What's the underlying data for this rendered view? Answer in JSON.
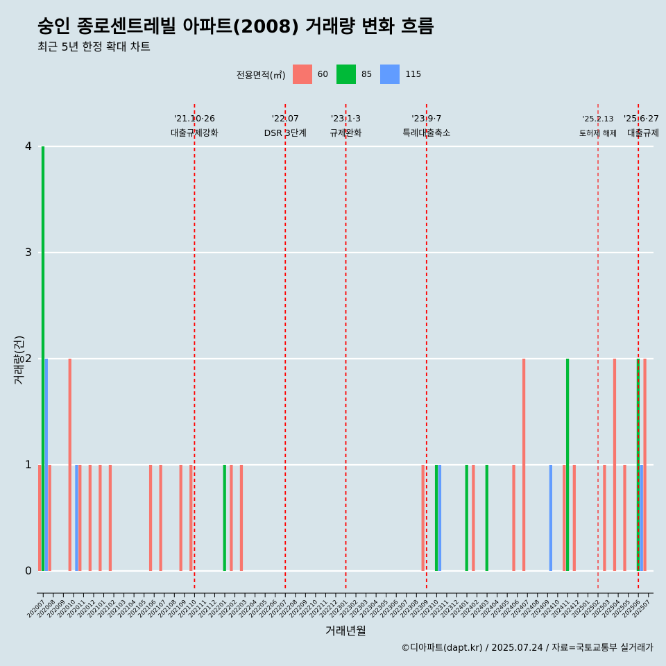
{
  "header": {
    "title": "숭인 종로센트레빌 아파트(2008) 거래량 변화 흐름",
    "subtitle": "최근 5년 한정 확대 차트"
  },
  "legend": {
    "title": "전용면적(㎡)",
    "items": [
      {
        "label": "60",
        "color": "#f8766d"
      },
      {
        "label": "85",
        "color": "#00ba38"
      },
      {
        "label": "115",
        "color": "#619cff"
      }
    ]
  },
  "footer": "©디아파트(dapt.kr) / 2025.07.24 / 자료=국토교통부 실거래가",
  "chart_data": {
    "type": "bar",
    "xlabel": "거래년월",
    "ylabel": "거래량(건)",
    "ylim": [
      0,
      4
    ],
    "yticks": [
      0,
      1,
      2,
      3,
      4
    ],
    "grid": true,
    "legend_position": "top",
    "categories": [
      "202007",
      "202008",
      "202009",
      "202010",
      "202011",
      "202012",
      "202101",
      "202102",
      "202103",
      "202104",
      "202105",
      "202106",
      "202107",
      "202108",
      "202109",
      "202110",
      "202111",
      "202112",
      "202201",
      "202202",
      "202203",
      "202204",
      "202205",
      "202206",
      "202207",
      "202208",
      "202209",
      "202210",
      "202211",
      "202212",
      "202301",
      "202302",
      "202303",
      "202304",
      "202305",
      "202306",
      "202307",
      "202308",
      "202309",
      "202310",
      "202311",
      "202312",
      "202401",
      "202402",
      "202403",
      "202404",
      "202405",
      "202406",
      "202407",
      "202408",
      "202409",
      "202410",
      "202411",
      "202412",
      "202501",
      "202502",
      "202503",
      "202504",
      "202505",
      "202506",
      "202507"
    ],
    "series": [
      {
        "name": "60",
        "color": "#f8766d",
        "values": [
          1,
          1,
          0,
          2,
          1,
          1,
          1,
          1,
          0,
          0,
          0,
          1,
          1,
          0,
          1,
          1,
          0,
          0,
          0,
          1,
          1,
          0,
          0,
          0,
          0,
          0,
          0,
          0,
          0,
          0,
          0,
          0,
          0,
          0,
          0,
          0,
          0,
          0,
          1,
          0,
          0,
          0,
          0,
          1,
          0,
          0,
          0,
          1,
          2,
          0,
          0,
          0,
          1,
          1,
          0,
          0,
          1,
          2,
          1,
          0,
          2
        ]
      },
      {
        "name": "85",
        "color": "#00ba38",
        "values": [
          4,
          0,
          0,
          0,
          0,
          0,
          0,
          0,
          0,
          0,
          0,
          0,
          0,
          0,
          0,
          0,
          0,
          0,
          1,
          0,
          0,
          0,
          0,
          0,
          0,
          0,
          0,
          0,
          0,
          0,
          0,
          0,
          0,
          0,
          0,
          0,
          0,
          0,
          0,
          1,
          0,
          0,
          1,
          0,
          1,
          0,
          0,
          0,
          0,
          0,
          0,
          0,
          2,
          0,
          0,
          0,
          0,
          0,
          0,
          2,
          0
        ]
      },
      {
        "name": "115",
        "color": "#619cff",
        "values": [
          2,
          0,
          0,
          1,
          0,
          0,
          0,
          0,
          0,
          0,
          0,
          0,
          0,
          0,
          0,
          0,
          0,
          0,
          0,
          0,
          0,
          0,
          0,
          0,
          0,
          0,
          0,
          0,
          0,
          0,
          0,
          0,
          0,
          0,
          0,
          0,
          0,
          0,
          0,
          1,
          0,
          0,
          0,
          0,
          0,
          0,
          0,
          0,
          0,
          0,
          1,
          0,
          0,
          0,
          0,
          0,
          0,
          0,
          0,
          1,
          0
        ]
      }
    ],
    "annotations": [
      {
        "x": "202110",
        "date": "'21.10·26",
        "label": "대출규제강화",
        "style": "bold"
      },
      {
        "x": "202207",
        "date": "'22.07",
        "label": "DSR 3단계",
        "style": "bold"
      },
      {
        "x": "202301",
        "date": "'23.1·3",
        "label": "규제완화",
        "style": "bold"
      },
      {
        "x": "202309",
        "date": "'23.9·7",
        "label": "특례대출축소",
        "style": "bold"
      },
      {
        "x": "202502",
        "date": "'25.2.13",
        "label": "토허제 해제",
        "style": "thin"
      },
      {
        "x": "202506",
        "date": "'25.6·27",
        "label": "대출규제",
        "style": "bold"
      }
    ]
  }
}
